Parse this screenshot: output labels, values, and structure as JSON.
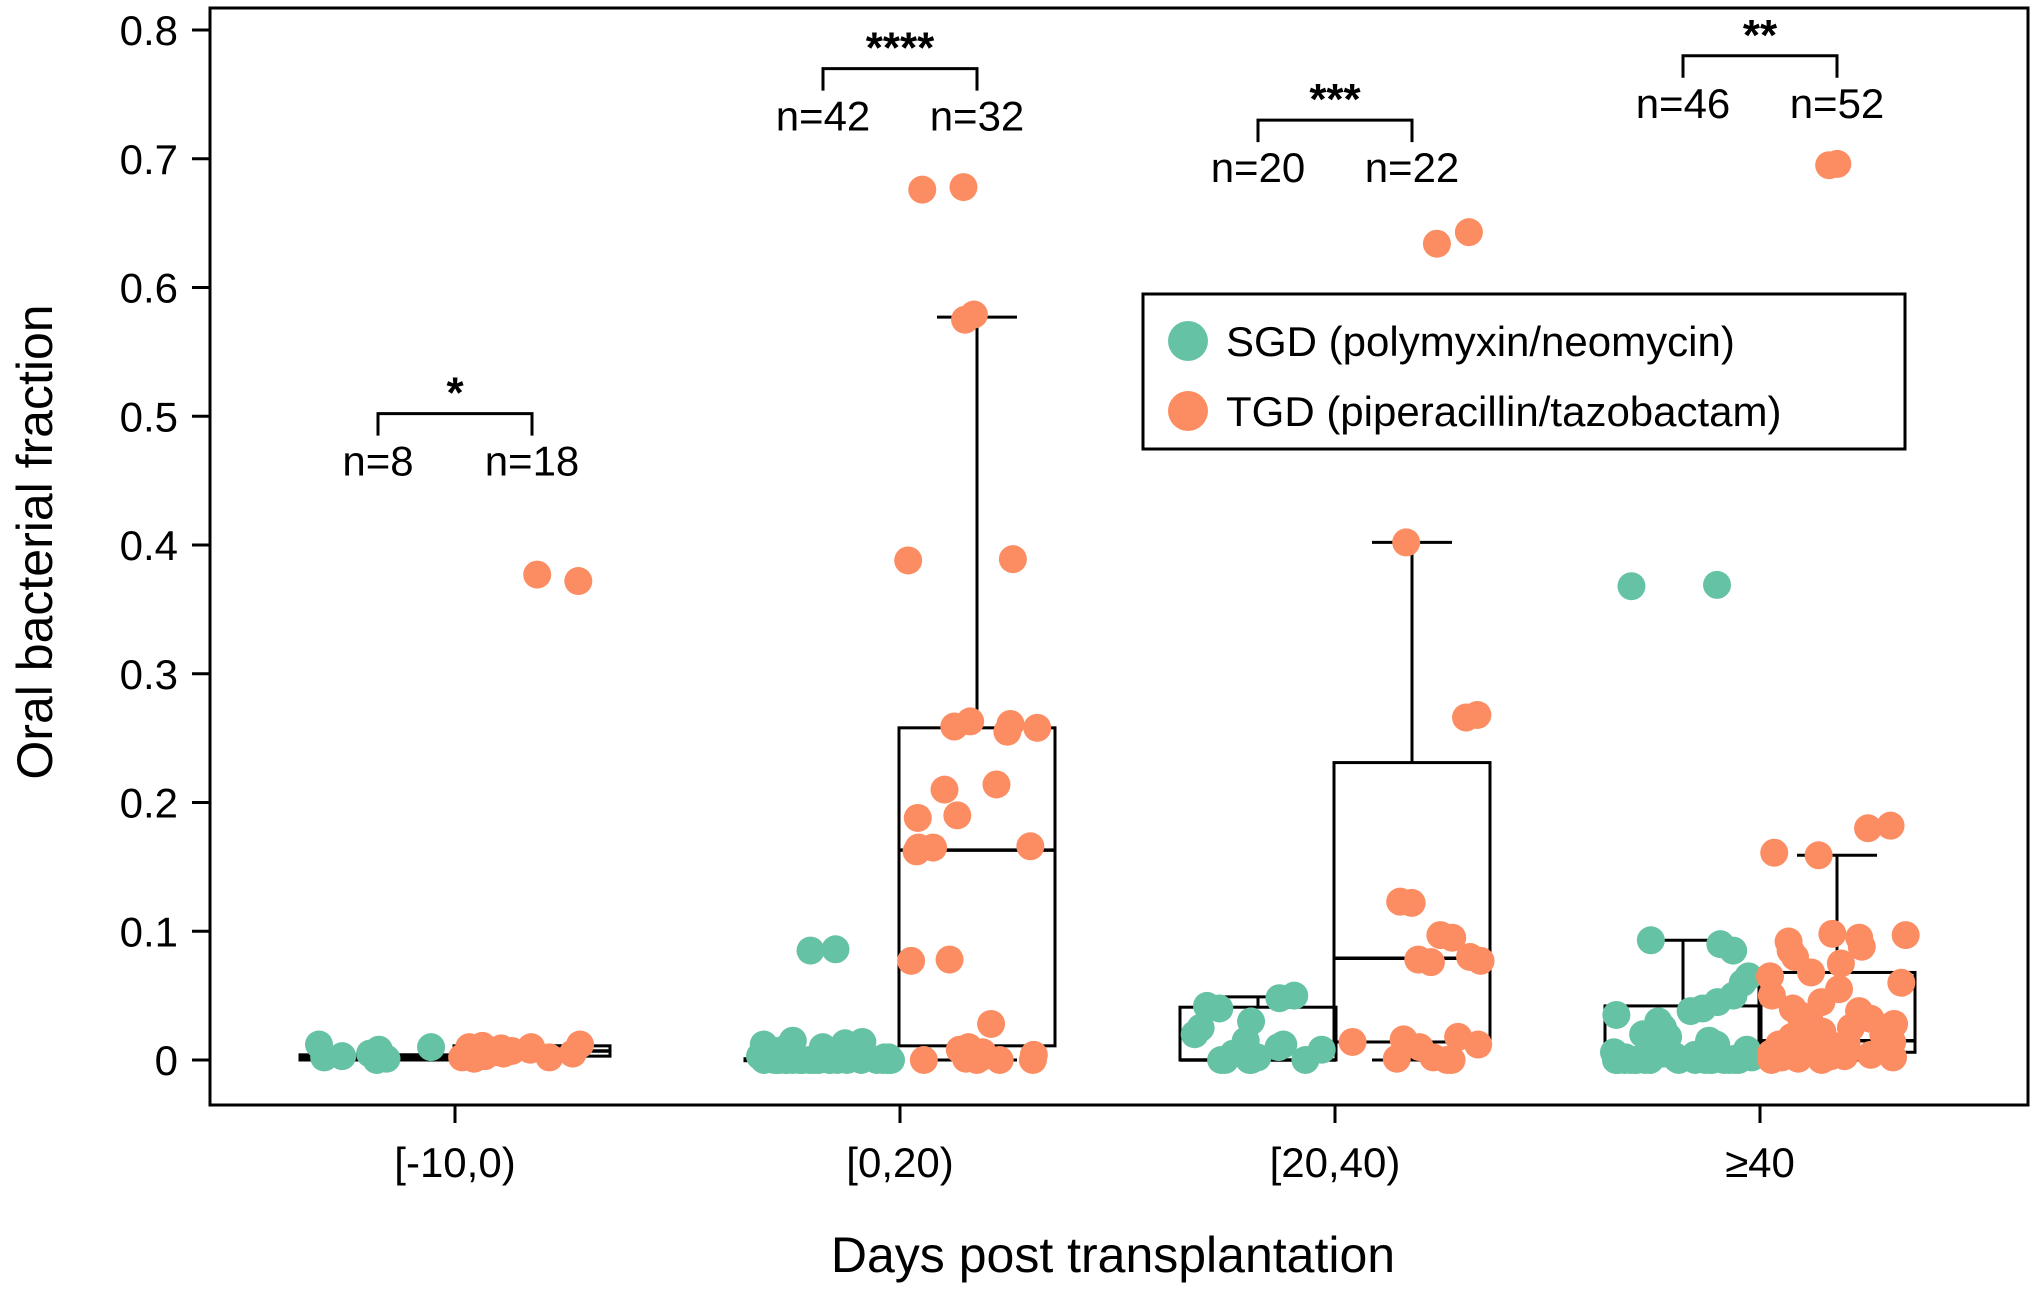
{
  "chart_data": {
    "type": "box",
    "xlabel": "Days post transplantation",
    "ylabel": "Oral bacterial fraction",
    "ylim": [
      0,
      0.8
    ],
    "yticks": [
      0,
      0.1,
      0.2,
      0.3,
      0.4,
      0.5,
      0.6,
      0.7,
      0.8
    ],
    "ytick_labels": [
      "0",
      "0.1",
      "0.2",
      "0.3",
      "0.4",
      "0.5",
      "0.6",
      "0.7",
      "0.8"
    ],
    "categories": [
      "[-10,0)",
      "[0,20)",
      "[20,40)",
      "≥40"
    ],
    "legend": {
      "placement": "upper-right"
    },
    "grid": false,
    "series": [
      {
        "name": "SGD (polymyxin/neomycin)",
        "color": "#66c2a5",
        "groups": [
          {
            "n_label": "n=8",
            "box": {
              "q1": 0.0,
              "median": 0.002,
              "q3": 0.004,
              "whisker_low": 0.0,
              "whisker_high": 0.004
            },
            "points": [
              0.0,
              0.001,
              0.002,
              0.003,
              0.005,
              0.008,
              0.012,
              0.01
            ]
          },
          {
            "n_label": "n=42",
            "box": {
              "q1": 0.0,
              "median": 0.0,
              "q3": 0.001,
              "whisker_low": 0.0,
              "whisker_high": 0.001
            },
            "points": [
              0.086,
              0.085,
              0.015,
              0.014,
              0.013,
              0.012,
              0.01,
              0.009,
              0.008,
              0.007,
              0.006,
              0.005,
              0.004,
              0.003,
              0.002,
              0.002,
              0.001,
              0.001,
              0.0,
              0.0,
              0.0,
              0.0,
              0.0,
              0.0,
              0.0,
              0.0,
              0.0,
              0.0,
              0.0,
              0.0,
              0.0,
              0.0,
              0.0,
              0.0,
              0.0,
              0.0,
              0.0,
              0.0,
              0.0,
              0.0,
              0.0,
              0.0
            ]
          },
          {
            "n_label": "n=20",
            "box": {
              "q1": 0.0,
              "median": 0.0,
              "q3": 0.041,
              "whisker_low": 0.0,
              "whisker_high": 0.049
            },
            "points": [
              0.05,
              0.048,
              0.042,
              0.04,
              0.03,
              0.025,
              0.02,
              0.015,
              0.012,
              0.01,
              0.008,
              0.005,
              0.003,
              0.002,
              0.001,
              0.0,
              0.0,
              0.0,
              0.0,
              0.0
            ]
          },
          {
            "n_label": "n=46",
            "box": {
              "q1": 0.0,
              "median": 0.001,
              "q3": 0.042,
              "whisker_low": 0.0,
              "whisker_high": 0.093
            },
            "points": [
              0.369,
              0.368,
              0.093,
              0.09,
              0.085,
              0.065,
              0.06,
              0.05,
              0.045,
              0.04,
              0.038,
              0.035,
              0.03,
              0.025,
              0.02,
              0.018,
              0.015,
              0.012,
              0.01,
              0.008,
              0.006,
              0.005,
              0.004,
              0.003,
              0.002,
              0.002,
              0.001,
              0.001,
              0.0,
              0.0,
              0.0,
              0.0,
              0.0,
              0.0,
              0.0,
              0.0,
              0.0,
              0.0,
              0.0,
              0.0,
              0.0,
              0.0,
              0.0,
              0.0,
              0.0,
              0.0
            ]
          }
        ]
      },
      {
        "name": "TGD (piperacillin/tazobactam)",
        "color": "#fc8d62",
        "groups": [
          {
            "n_label": "n=18",
            "box": {
              "q1": 0.003,
              "median": 0.007,
              "q3": 0.011,
              "whisker_low": 0.003,
              "whisker_high": 0.011
            },
            "points": [
              0.377,
              0.372,
              0.012,
              0.011,
              0.01,
              0.01,
              0.009,
              0.008,
              0.007,
              0.007,
              0.006,
              0.005,
              0.005,
              0.004,
              0.003,
              0.002,
              0.002,
              0.001
            ]
          },
          {
            "n_label": "n=32",
            "box": {
              "q1": 0.011,
              "median": 0.163,
              "q3": 0.258,
              "whisker_low": 0.0,
              "whisker_high": 0.577
            },
            "points": [
              0.678,
              0.676,
              0.579,
              0.575,
              0.388,
              0.389,
              0.263,
              0.261,
              0.259,
              0.258,
              0.255,
              0.214,
              0.21,
              0.19,
              0.188,
              0.166,
              0.165,
              0.162,
              0.165,
              0.078,
              0.077,
              0.028,
              0.01,
              0.008,
              0.006,
              0.004,
              0.002,
              0.001,
              0.0,
              0.0,
              0.0,
              0.0
            ]
          },
          {
            "n_label": "n=22",
            "box": {
              "q1": 0.014,
              "median": 0.079,
              "q3": 0.231,
              "whisker_low": 0.0,
              "whisker_high": 0.402
            },
            "points": [
              0.643,
              0.634,
              0.402,
              0.268,
              0.266,
              0.123,
              0.122,
              0.097,
              0.095,
              0.08,
              0.078,
              0.077,
              0.076,
              0.018,
              0.016,
              0.014,
              0.012,
              0.01,
              0.002,
              0.001,
              0.0,
              0.0
            ]
          },
          {
            "n_label": "n=52",
            "box": {
              "q1": 0.006,
              "median": 0.015,
              "q3": 0.068,
              "whisker_low": 0.0,
              "whisker_high": 0.159
            },
            "points": [
              0.696,
              0.695,
              0.182,
              0.18,
              0.161,
              0.159,
              0.098,
              0.097,
              0.095,
              0.092,
              0.088,
              0.085,
              0.08,
              0.075,
              0.068,
              0.065,
              0.06,
              0.055,
              0.05,
              0.045,
              0.04,
              0.038,
              0.035,
              0.032,
              0.03,
              0.028,
              0.025,
              0.022,
              0.02,
              0.018,
              0.016,
              0.015,
              0.014,
              0.013,
              0.012,
              0.011,
              0.01,
              0.009,
              0.008,
              0.007,
              0.006,
              0.005,
              0.005,
              0.004,
              0.003,
              0.003,
              0.002,
              0.002,
              0.001,
              0.001,
              0.0,
              0.0
            ]
          }
        ]
      }
    ],
    "significance": [
      {
        "label": "*",
        "y": 0.502
      },
      {
        "label": "****",
        "y": 0.77
      },
      {
        "label": "***",
        "y": 0.73
      },
      {
        "label": "**",
        "y": 0.78
      }
    ]
  }
}
